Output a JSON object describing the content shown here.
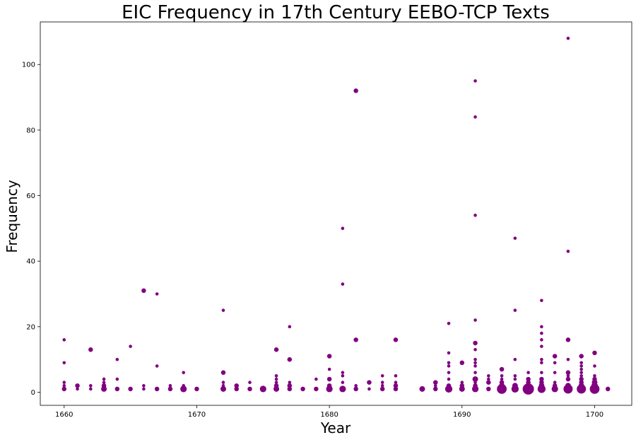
{
  "chart_data": {
    "type": "scatter",
    "title": "EIC Frequency in 17th Century EEBO-TCP Texts",
    "xlabel": "Year",
    "ylabel": "Frequency",
    "xlim": [
      1658.2,
      1702.8
    ],
    "ylim": [
      -4,
      113
    ],
    "xticks": [
      1660,
      1670,
      1680,
      1690,
      1700
    ],
    "yticks": [
      0,
      20,
      40,
      60,
      80,
      100
    ],
    "grid": false,
    "marker_color": "#800080",
    "size_encoding": "marker area grows with number of texts at the same (year, frequency)",
    "points": [
      {
        "x": 1660,
        "y": 16,
        "s": 1
      },
      {
        "x": 1660,
        "y": 9,
        "s": 1
      },
      {
        "x": 1660,
        "y": 3,
        "s": 1
      },
      {
        "x": 1660,
        "y": 2,
        "s": 1
      },
      {
        "x": 1660,
        "y": 1,
        "s": 2
      },
      {
        "x": 1661,
        "y": 2,
        "s": 2
      },
      {
        "x": 1661,
        "y": 1,
        "s": 1
      },
      {
        "x": 1662,
        "y": 13,
        "s": 2
      },
      {
        "x": 1662,
        "y": 2,
        "s": 1
      },
      {
        "x": 1662,
        "y": 1,
        "s": 1
      },
      {
        "x": 1663,
        "y": 4,
        "s": 1
      },
      {
        "x": 1663,
        "y": 3,
        "s": 1
      },
      {
        "x": 1663,
        "y": 2,
        "s": 2
      },
      {
        "x": 1663,
        "y": 1,
        "s": 3
      },
      {
        "x": 1664,
        "y": 10,
        "s": 1
      },
      {
        "x": 1664,
        "y": 4,
        "s": 1
      },
      {
        "x": 1664,
        "y": 1,
        "s": 2
      },
      {
        "x": 1665,
        "y": 14,
        "s": 1
      },
      {
        "x": 1665,
        "y": 1,
        "s": 2
      },
      {
        "x": 1666,
        "y": 31,
        "s": 2
      },
      {
        "x": 1666,
        "y": 2,
        "s": 1
      },
      {
        "x": 1666,
        "y": 1,
        "s": 1
      },
      {
        "x": 1667,
        "y": 30,
        "s": 1
      },
      {
        "x": 1667,
        "y": 8,
        "s": 1
      },
      {
        "x": 1667,
        "y": 1,
        "s": 2
      },
      {
        "x": 1668,
        "y": 2,
        "s": 1
      },
      {
        "x": 1668,
        "y": 1,
        "s": 2
      },
      {
        "x": 1669,
        "y": 6,
        "s": 1
      },
      {
        "x": 1669,
        "y": 2,
        "s": 1
      },
      {
        "x": 1669,
        "y": 1,
        "s": 4
      },
      {
        "x": 1670,
        "y": 1,
        "s": 2
      },
      {
        "x": 1672,
        "y": 25,
        "s": 1
      },
      {
        "x": 1672,
        "y": 6,
        "s": 2
      },
      {
        "x": 1672,
        "y": 3,
        "s": 1
      },
      {
        "x": 1672,
        "y": 2,
        "s": 1
      },
      {
        "x": 1672,
        "y": 1,
        "s": 3
      },
      {
        "x": 1673,
        "y": 2,
        "s": 2
      },
      {
        "x": 1673,
        "y": 1,
        "s": 2
      },
      {
        "x": 1674,
        "y": 3,
        "s": 1
      },
      {
        "x": 1674,
        "y": 1,
        "s": 2
      },
      {
        "x": 1675,
        "y": 1,
        "s": 4
      },
      {
        "x": 1676,
        "y": 13,
        "s": 2
      },
      {
        "x": 1676,
        "y": 5,
        "s": 1
      },
      {
        "x": 1676,
        "y": 4,
        "s": 1
      },
      {
        "x": 1676,
        "y": 3,
        "s": 1
      },
      {
        "x": 1676,
        "y": 2,
        "s": 2
      },
      {
        "x": 1676,
        "y": 1,
        "s": 3
      },
      {
        "x": 1677,
        "y": 20,
        "s": 1
      },
      {
        "x": 1677,
        "y": 10,
        "s": 2
      },
      {
        "x": 1677,
        "y": 3,
        "s": 1
      },
      {
        "x": 1677,
        "y": 2,
        "s": 2
      },
      {
        "x": 1677,
        "y": 1,
        "s": 2
      },
      {
        "x": 1678,
        "y": 1,
        "s": 2
      },
      {
        "x": 1679,
        "y": 4,
        "s": 1
      },
      {
        "x": 1679,
        "y": 1,
        "s": 2
      },
      {
        "x": 1680,
        "y": 11,
        "s": 2
      },
      {
        "x": 1680,
        "y": 7,
        "s": 1
      },
      {
        "x": 1680,
        "y": 4,
        "s": 2
      },
      {
        "x": 1680,
        "y": 2,
        "s": 2
      },
      {
        "x": 1680,
        "y": 1,
        "s": 4
      },
      {
        "x": 1681,
        "y": 50,
        "s": 1
      },
      {
        "x": 1681,
        "y": 33,
        "s": 1
      },
      {
        "x": 1681,
        "y": 6,
        "s": 1
      },
      {
        "x": 1681,
        "y": 5,
        "s": 1
      },
      {
        "x": 1681,
        "y": 3,
        "s": 1
      },
      {
        "x": 1681,
        "y": 1,
        "s": 4
      },
      {
        "x": 1682,
        "y": 92,
        "s": 2
      },
      {
        "x": 1682,
        "y": 16,
        "s": 2
      },
      {
        "x": 1682,
        "y": 2,
        "s": 1
      },
      {
        "x": 1682,
        "y": 1,
        "s": 2
      },
      {
        "x": 1683,
        "y": 3,
        "s": 2
      },
      {
        "x": 1683,
        "y": 1,
        "s": 1
      },
      {
        "x": 1684,
        "y": 5,
        "s": 1
      },
      {
        "x": 1684,
        "y": 3,
        "s": 1
      },
      {
        "x": 1684,
        "y": 2,
        "s": 1
      },
      {
        "x": 1684,
        "y": 1,
        "s": 2
      },
      {
        "x": 1685,
        "y": 16,
        "s": 2
      },
      {
        "x": 1685,
        "y": 5,
        "s": 1
      },
      {
        "x": 1685,
        "y": 3,
        "s": 1
      },
      {
        "x": 1685,
        "y": 2,
        "s": 2
      },
      {
        "x": 1685,
        "y": 1,
        "s": 2
      },
      {
        "x": 1687,
        "y": 1,
        "s": 3
      },
      {
        "x": 1688,
        "y": 3,
        "s": 2
      },
      {
        "x": 1688,
        "y": 2,
        "s": 1
      },
      {
        "x": 1688,
        "y": 1,
        "s": 2
      },
      {
        "x": 1689,
        "y": 21,
        "s": 1
      },
      {
        "x": 1689,
        "y": 12,
        "s": 1
      },
      {
        "x": 1689,
        "y": 9,
        "s": 1
      },
      {
        "x": 1689,
        "y": 8,
        "s": 1
      },
      {
        "x": 1689,
        "y": 6,
        "s": 1
      },
      {
        "x": 1689,
        "y": 4,
        "s": 1
      },
      {
        "x": 1689,
        "y": 2,
        "s": 2
      },
      {
        "x": 1689,
        "y": 1,
        "s": 5
      },
      {
        "x": 1690,
        "y": 9,
        "s": 2
      },
      {
        "x": 1690,
        "y": 3,
        "s": 1
      },
      {
        "x": 1690,
        "y": 2,
        "s": 2
      },
      {
        "x": 1690,
        "y": 1,
        "s": 3
      },
      {
        "x": 1691,
        "y": 95,
        "s": 1
      },
      {
        "x": 1691,
        "y": 84,
        "s": 1
      },
      {
        "x": 1691,
        "y": 54,
        "s": 1
      },
      {
        "x": 1691,
        "y": 22,
        "s": 1
      },
      {
        "x": 1691,
        "y": 15,
        "s": 2
      },
      {
        "x": 1691,
        "y": 13,
        "s": 1
      },
      {
        "x": 1691,
        "y": 10,
        "s": 1
      },
      {
        "x": 1691,
        "y": 9,
        "s": 1
      },
      {
        "x": 1691,
        "y": 8,
        "s": 1
      },
      {
        "x": 1691,
        "y": 6,
        "s": 1
      },
      {
        "x": 1691,
        "y": 4,
        "s": 3
      },
      {
        "x": 1691,
        "y": 3,
        "s": 1
      },
      {
        "x": 1691,
        "y": 2,
        "s": 2
      },
      {
        "x": 1691,
        "y": 1,
        "s": 4
      },
      {
        "x": 1692,
        "y": 5,
        "s": 1
      },
      {
        "x": 1692,
        "y": 4,
        "s": 1
      },
      {
        "x": 1692,
        "y": 3,
        "s": 2
      },
      {
        "x": 1692,
        "y": 1,
        "s": 2
      },
      {
        "x": 1693,
        "y": 7,
        "s": 2
      },
      {
        "x": 1693,
        "y": 5,
        "s": 1
      },
      {
        "x": 1693,
        "y": 4,
        "s": 1
      },
      {
        "x": 1693,
        "y": 3,
        "s": 2
      },
      {
        "x": 1693,
        "y": 2,
        "s": 3
      },
      {
        "x": 1693,
        "y": 1,
        "s": 9
      },
      {
        "x": 1694,
        "y": 47,
        "s": 1
      },
      {
        "x": 1694,
        "y": 25,
        "s": 1
      },
      {
        "x": 1694,
        "y": 10,
        "s": 1
      },
      {
        "x": 1694,
        "y": 5,
        "s": 1
      },
      {
        "x": 1694,
        "y": 4,
        "s": 1
      },
      {
        "x": 1694,
        "y": 2,
        "s": 3
      },
      {
        "x": 1694,
        "y": 1,
        "s": 5
      },
      {
        "x": 1695,
        "y": 6,
        "s": 1
      },
      {
        "x": 1695,
        "y": 4,
        "s": 2
      },
      {
        "x": 1695,
        "y": 3,
        "s": 2
      },
      {
        "x": 1695,
        "y": 2,
        "s": 3
      },
      {
        "x": 1695,
        "y": 1,
        "s": 12
      },
      {
        "x": 1696,
        "y": 28,
        "s": 1
      },
      {
        "x": 1696,
        "y": 20,
        "s": 1
      },
      {
        "x": 1696,
        "y": 18,
        "s": 1
      },
      {
        "x": 1696,
        "y": 16,
        "s": 1
      },
      {
        "x": 1696,
        "y": 14,
        "s": 1
      },
      {
        "x": 1696,
        "y": 10,
        "s": 1
      },
      {
        "x": 1696,
        "y": 9,
        "s": 1
      },
      {
        "x": 1696,
        "y": 6,
        "s": 1
      },
      {
        "x": 1696,
        "y": 4,
        "s": 2
      },
      {
        "x": 1696,
        "y": 3,
        "s": 2
      },
      {
        "x": 1696,
        "y": 2,
        "s": 3
      },
      {
        "x": 1696,
        "y": 1,
        "s": 6
      },
      {
        "x": 1697,
        "y": 11,
        "s": 2
      },
      {
        "x": 1697,
        "y": 9,
        "s": 1
      },
      {
        "x": 1697,
        "y": 6,
        "s": 1
      },
      {
        "x": 1697,
        "y": 3,
        "s": 1
      },
      {
        "x": 1697,
        "y": 2,
        "s": 2
      },
      {
        "x": 1697,
        "y": 1,
        "s": 4
      },
      {
        "x": 1698,
        "y": 108,
        "s": 1
      },
      {
        "x": 1698,
        "y": 43,
        "s": 1
      },
      {
        "x": 1698,
        "y": 16,
        "s": 2
      },
      {
        "x": 1698,
        "y": 10,
        "s": 1
      },
      {
        "x": 1698,
        "y": 6,
        "s": 2
      },
      {
        "x": 1698,
        "y": 5,
        "s": 1
      },
      {
        "x": 1698,
        "y": 4,
        "s": 2
      },
      {
        "x": 1698,
        "y": 2,
        "s": 3
      },
      {
        "x": 1698,
        "y": 1,
        "s": 8
      },
      {
        "x": 1699,
        "y": 11,
        "s": 2
      },
      {
        "x": 1699,
        "y": 9,
        "s": 1
      },
      {
        "x": 1699,
        "y": 8,
        "s": 1
      },
      {
        "x": 1699,
        "y": 7,
        "s": 1
      },
      {
        "x": 1699,
        "y": 6,
        "s": 1
      },
      {
        "x": 1699,
        "y": 5,
        "s": 1
      },
      {
        "x": 1699,
        "y": 4,
        "s": 2
      },
      {
        "x": 1699,
        "y": 3,
        "s": 2
      },
      {
        "x": 1699,
        "y": 2,
        "s": 3
      },
      {
        "x": 1699,
        "y": 1,
        "s": 8
      },
      {
        "x": 1700,
        "y": 12,
        "s": 2
      },
      {
        "x": 1700,
        "y": 8,
        "s": 1
      },
      {
        "x": 1700,
        "y": 5,
        "s": 1
      },
      {
        "x": 1700,
        "y": 4,
        "s": 2
      },
      {
        "x": 1700,
        "y": 3,
        "s": 3
      },
      {
        "x": 1700,
        "y": 2,
        "s": 4
      },
      {
        "x": 1700,
        "y": 1,
        "s": 9
      },
      {
        "x": 1701,
        "y": 1,
        "s": 2
      }
    ]
  }
}
